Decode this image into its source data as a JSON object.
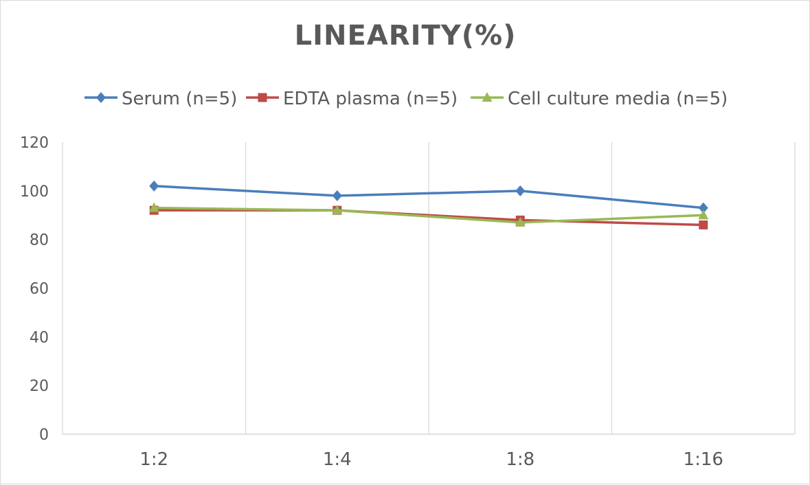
{
  "chart_data": {
    "type": "line",
    "title": "LINEARITY(%)",
    "categories": [
      "1:2",
      "1:4",
      "1:8",
      "1:16"
    ],
    "series": [
      {
        "name": "Serum (n=5)",
        "values": [
          102,
          98,
          100,
          93
        ],
        "color": "#4a7ebb",
        "marker": "diamond"
      },
      {
        "name": "EDTA plasma (n=5)",
        "values": [
          92,
          92,
          88,
          86
        ],
        "color": "#be4b48",
        "marker": "square"
      },
      {
        "name": "Cell culture media (n=5)",
        "values": [
          93,
          92,
          87,
          90
        ],
        "color": "#98b954",
        "marker": "triangle"
      }
    ],
    "ylim": [
      0,
      120
    ],
    "yticks": [
      0,
      20,
      40,
      60,
      80,
      100,
      120
    ],
    "xlabel": "",
    "ylabel": "",
    "grid": "vertical",
    "legend": "top"
  }
}
